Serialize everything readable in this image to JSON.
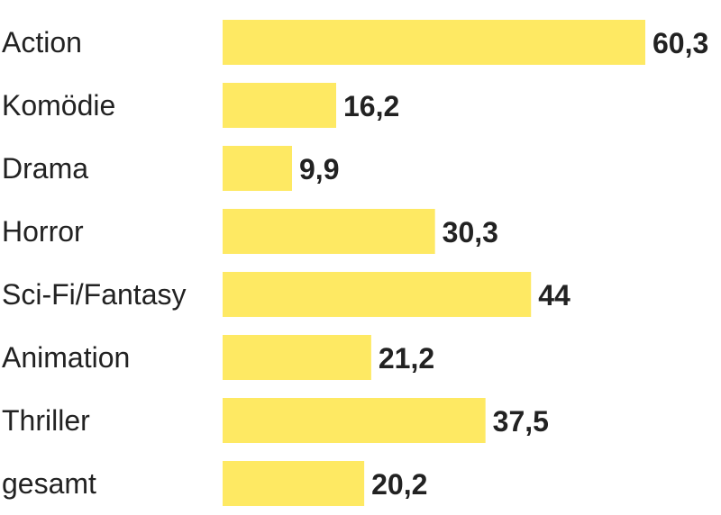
{
  "chart_data": {
    "type": "bar",
    "orientation": "horizontal",
    "categories": [
      "Action",
      "Komödie",
      "Drama",
      "Horror",
      "Sci-Fi/Fantasy",
      "Animation",
      "Thriller",
      "gesamt"
    ],
    "values": [
      60.3,
      16.2,
      9.9,
      30.3,
      44,
      21.2,
      37.5,
      20.2
    ],
    "value_labels": [
      "60,3",
      "16,2",
      "9,9",
      "30,3",
      "44",
      "21,2",
      "37,5",
      "20,2"
    ],
    "title": "",
    "xlabel": "",
    "ylabel": "",
    "xlim": [
      0,
      60.3
    ],
    "grid": false,
    "colors": {
      "bar": "#FEE963",
      "text": "#222222"
    }
  }
}
